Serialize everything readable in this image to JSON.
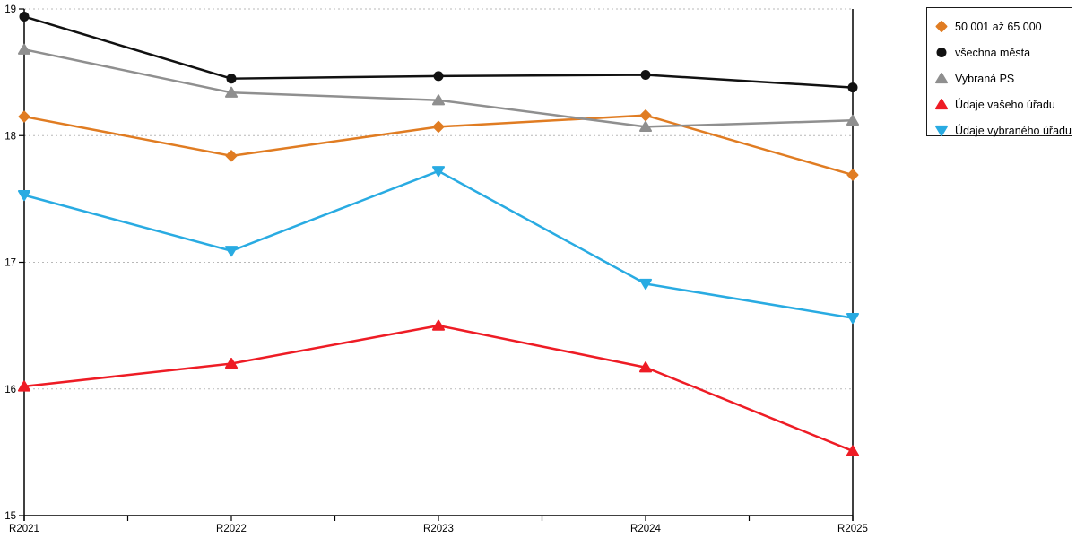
{
  "chart_data": {
    "type": "line",
    "title": "",
    "xlabel": "",
    "ylabel": "",
    "categories": [
      "R2021",
      "R2022",
      "R2023",
      "R2024",
      "R2025"
    ],
    "series": [
      {
        "name": "50 001 až 65 000",
        "marker": "diamond",
        "color": "#E07C22",
        "values": [
          18.15,
          17.84,
          18.07,
          18.16,
          17.69
        ]
      },
      {
        "name": "všechna města",
        "marker": "circle",
        "color": "#111111",
        "values": [
          18.94,
          18.45,
          18.47,
          18.48,
          18.38
        ]
      },
      {
        "name": "Vybraná PS",
        "marker": "triangle-up",
        "color": "#8F8F8F",
        "values": [
          18.68,
          18.34,
          18.28,
          18.07,
          18.12
        ]
      },
      {
        "name": "Údaje vašeho úřadu",
        "marker": "triangle-up",
        "color": "#EE1C25",
        "values": [
          16.02,
          16.2,
          16.5,
          16.17,
          15.51
        ]
      },
      {
        "name": "Údaje vybraného úřadu",
        "marker": "triangle-down",
        "color": "#29ABE2",
        "values": [
          17.53,
          17.09,
          17.72,
          16.83,
          16.56
        ]
      }
    ],
    "ylim": [
      15,
      19
    ],
    "y_ticks": [
      15,
      16,
      17,
      18,
      19
    ],
    "grid": "horizontal-dotted",
    "grid_color": "#b8b8b8",
    "axis_color": "#000000",
    "legend_position": "outside-top-right",
    "line_width": 2.5
  }
}
